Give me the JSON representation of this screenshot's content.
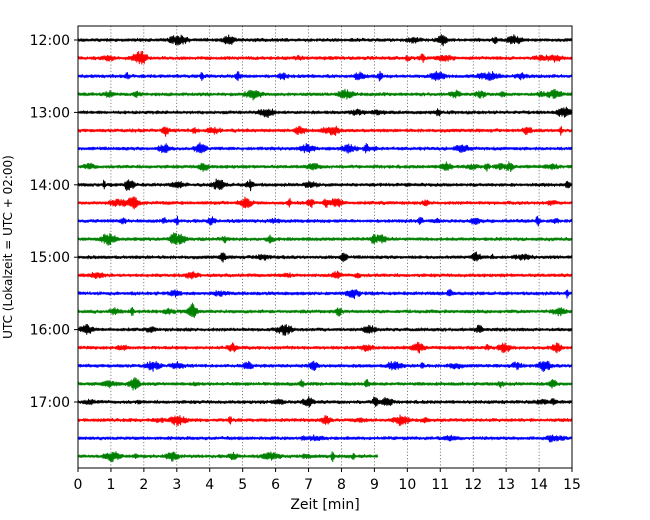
{
  "chart_data": {
    "type": "line",
    "title": "",
    "xlabel": "Zeit  [min]",
    "ylabel": "UTC (Lokalzeit = UTC + 02:00)",
    "xlim": [
      0,
      15
    ],
    "x_ticks": [
      0,
      1,
      2,
      3,
      4,
      5,
      6,
      7,
      8,
      9,
      10,
      11,
      12,
      13,
      14,
      15
    ],
    "y_tick_labels": [
      "12:00",
      "13:00",
      "14:00",
      "15:00",
      "16:00",
      "17:00"
    ],
    "grid_x": true,
    "colors": [
      "#000000",
      "#ff0000",
      "#0000ff",
      "#008000"
    ],
    "series": [
      {
        "start": "12:00",
        "color": "#000000",
        "duration_min": 15
      },
      {
        "start": "12:15",
        "color": "#ff0000",
        "duration_min": 15
      },
      {
        "start": "12:30",
        "color": "#0000ff",
        "duration_min": 15
      },
      {
        "start": "12:45",
        "color": "#008000",
        "duration_min": 15
      },
      {
        "start": "13:00",
        "color": "#000000",
        "duration_min": 15
      },
      {
        "start": "13:15",
        "color": "#ff0000",
        "duration_min": 15
      },
      {
        "start": "13:30",
        "color": "#0000ff",
        "duration_min": 15
      },
      {
        "start": "13:45",
        "color": "#008000",
        "duration_min": 15
      },
      {
        "start": "14:00",
        "color": "#000000",
        "duration_min": 15
      },
      {
        "start": "14:15",
        "color": "#ff0000",
        "duration_min": 15
      },
      {
        "start": "14:30",
        "color": "#0000ff",
        "duration_min": 15
      },
      {
        "start": "14:45",
        "color": "#008000",
        "duration_min": 15
      },
      {
        "start": "15:00",
        "color": "#000000",
        "duration_min": 15
      },
      {
        "start": "15:15",
        "color": "#ff0000",
        "duration_min": 15
      },
      {
        "start": "15:30",
        "color": "#0000ff",
        "duration_min": 15
      },
      {
        "start": "15:45",
        "color": "#008000",
        "duration_min": 15
      },
      {
        "start": "16:00",
        "color": "#000000",
        "duration_min": 15
      },
      {
        "start": "16:15",
        "color": "#ff0000",
        "duration_min": 15
      },
      {
        "start": "16:30",
        "color": "#0000ff",
        "duration_min": 15
      },
      {
        "start": "16:45",
        "color": "#008000",
        "duration_min": 15
      },
      {
        "start": "17:00",
        "color": "#000000",
        "duration_min": 15
      },
      {
        "start": "17:15",
        "color": "#ff0000",
        "duration_min": 15
      },
      {
        "start": "17:30",
        "color": "#0000ff",
        "duration_min": 15
      },
      {
        "start": "17:45",
        "color": "#008000",
        "duration_min": 9.1
      }
    ]
  }
}
